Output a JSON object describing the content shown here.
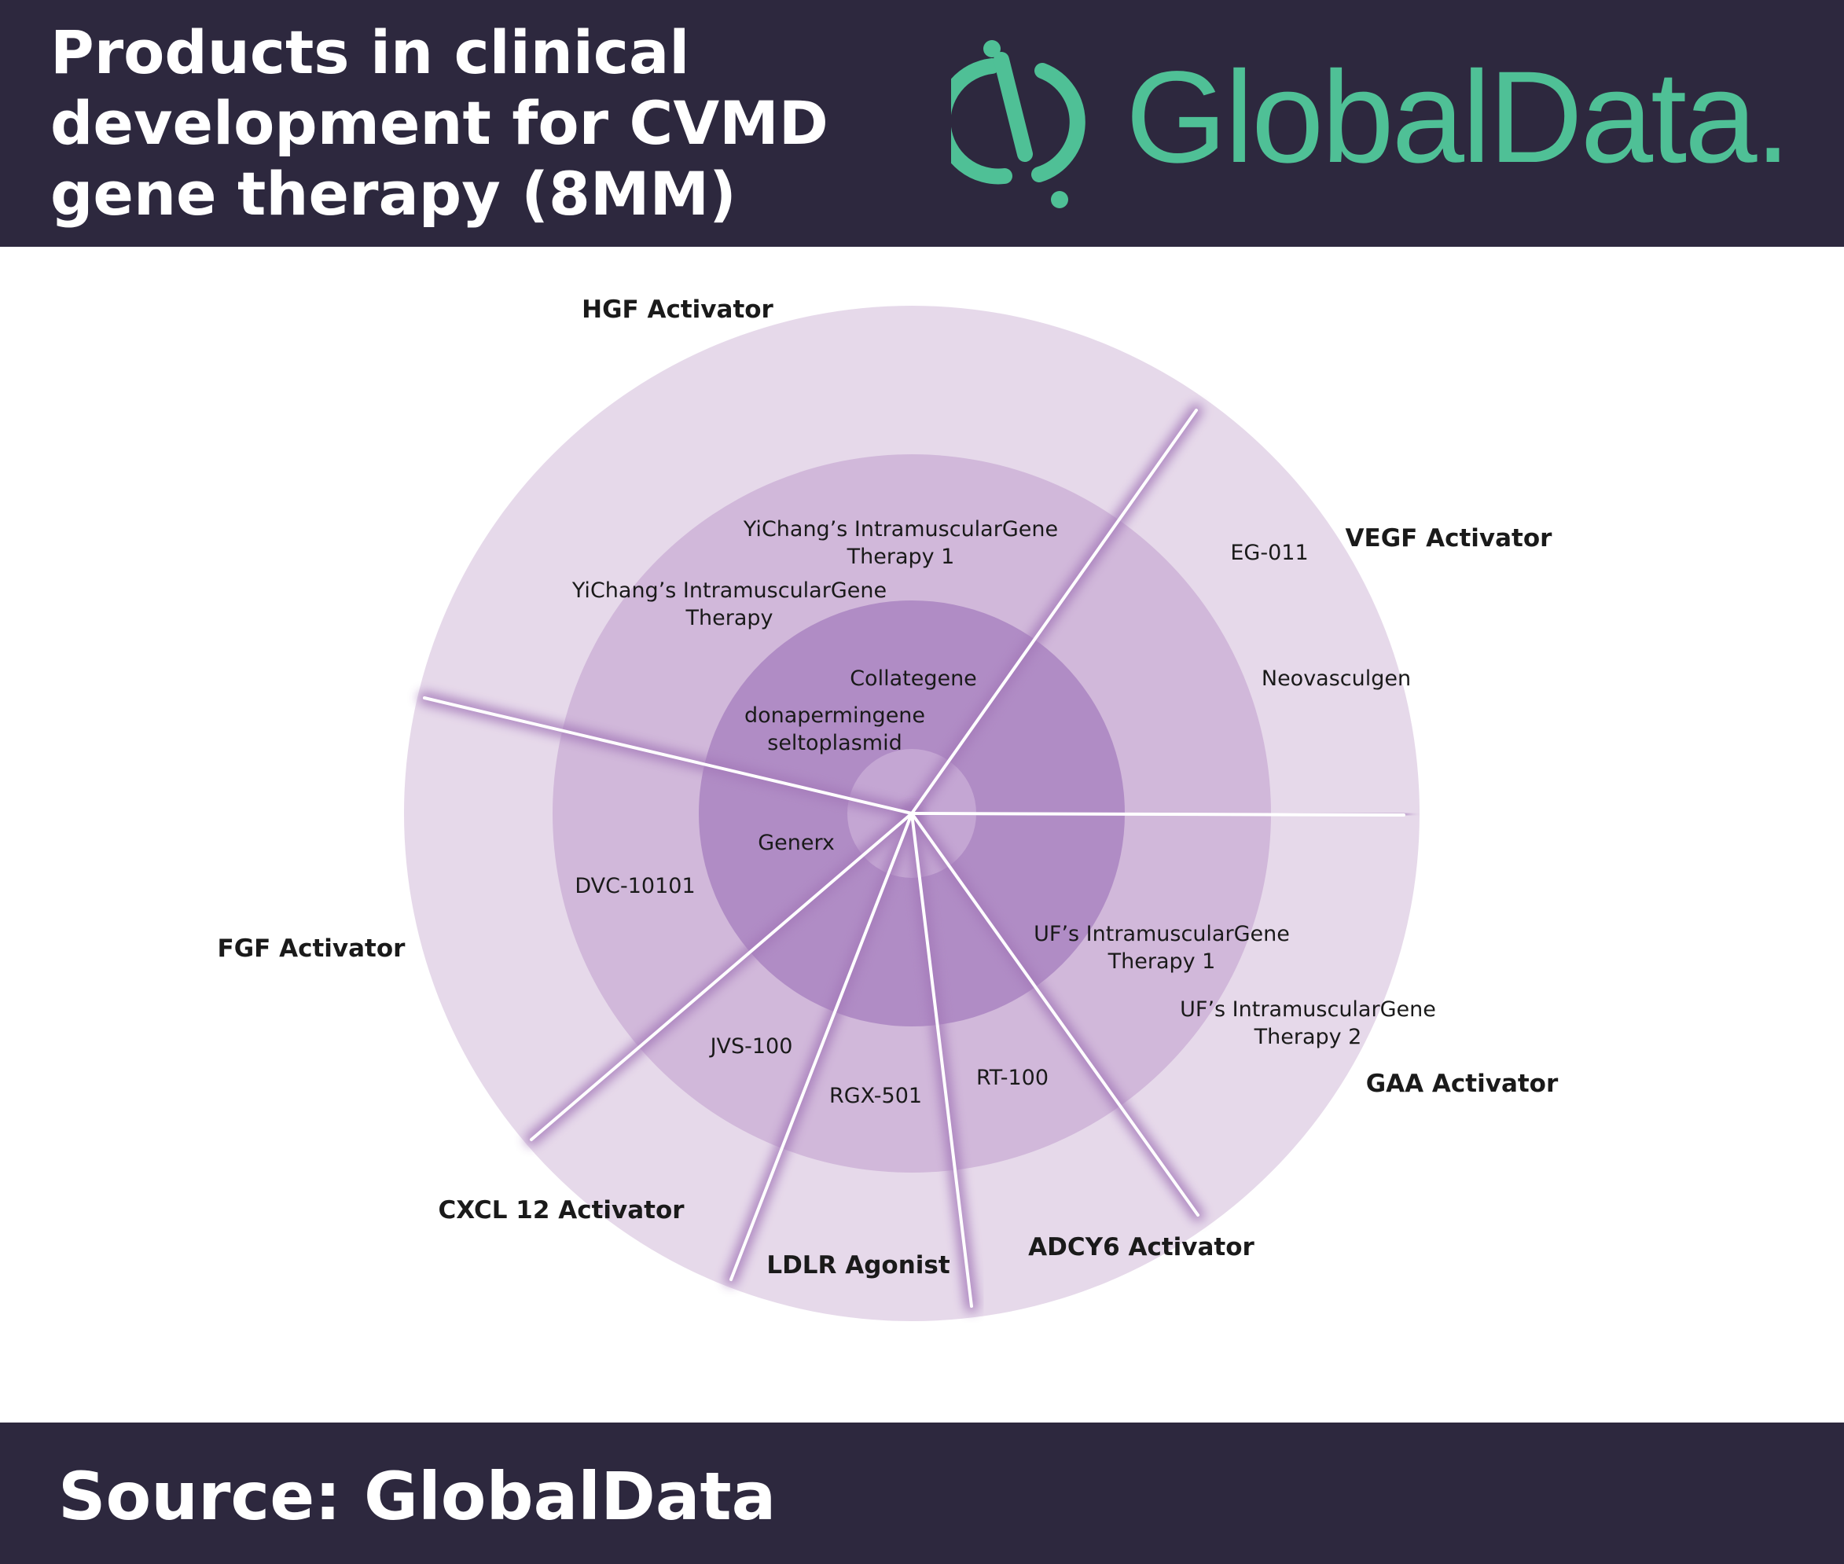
{
  "header": {
    "title_lines": [
      "Products in clinical",
      "development for CVMD",
      "gene therapy (8MM)"
    ],
    "logo_text": "GlobalData."
  },
  "footer": {
    "source": "Source: GlobalData"
  },
  "colors": {
    "header_bg": "#2d283e",
    "brand_green": "#4fc096",
    "ring_outer": "#e6d9ea",
    "ring_middle": "#d1b8da",
    "ring_inner": "#b08cc5",
    "center": "#c4a6d3"
  },
  "diagram": {
    "type": "radial pipeline diagram",
    "categories": [
      "HGF Activator",
      "VEGF Activator",
      "GAA Activator",
      "ADCY6 Activator",
      "LDLR Agonist",
      "CXCL 12 Activator",
      "FGF Activator"
    ],
    "products": [
      {
        "lines": [
          "YiChang’s IntramuscularGene",
          "Therapy 1"
        ],
        "category": "HGF Activator"
      },
      {
        "lines": [
          "YiChang’s IntramuscularGene",
          "Therapy"
        ],
        "category": "HGF Activator"
      },
      {
        "lines": [
          "Collategene"
        ],
        "category": "HGF Activator"
      },
      {
        "lines": [
          "donapermingene",
          "seltoplasmid"
        ],
        "category": "HGF Activator"
      },
      {
        "lines": [
          "EG-011"
        ],
        "category": "VEGF Activator"
      },
      {
        "lines": [
          "Neovasculgen"
        ],
        "category": "VEGF Activator"
      },
      {
        "lines": [
          "UF’s IntramuscularGene",
          "Therapy 1"
        ],
        "category": "GAA Activator"
      },
      {
        "lines": [
          "UF’s IntramuscularGene",
          "Therapy 2"
        ],
        "category": "GAA Activator"
      },
      {
        "lines": [
          "RT-100"
        ],
        "category": "ADCY6 Activator"
      },
      {
        "lines": [
          "RGX-501"
        ],
        "category": "LDLR Agonist"
      },
      {
        "lines": [
          "JVS-100"
        ],
        "category": "CXCL 12 Activator"
      },
      {
        "lines": [
          "Generx"
        ],
        "category": "FGF Activator"
      },
      {
        "lines": [
          "DVC-10101"
        ],
        "category": "FGF Activator"
      }
    ]
  }
}
